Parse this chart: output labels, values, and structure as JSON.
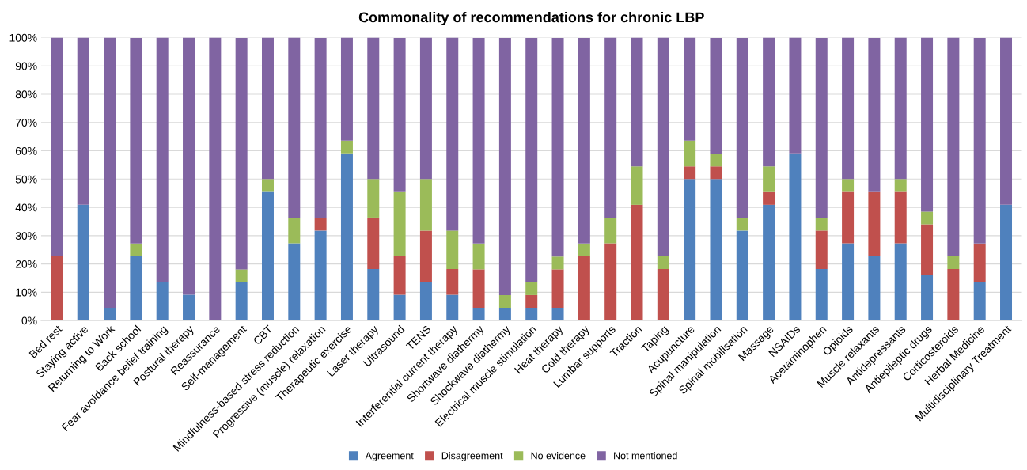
{
  "chart_data": {
    "type": "bar",
    "stacked": true,
    "title": "Commonality of recommendations for chronic LBP",
    "categories": [
      "Bed rest",
      "Staying active",
      "Returning to Work",
      "Back school",
      "Fear avoidance belief training",
      "Postural therapy",
      "Reassurance",
      "Self-management",
      "CBT",
      "Mindfulness-based stress reduction",
      "Progressive (muscle) relaxation",
      "Therapeutic exercise",
      "Laser therapy",
      "Ultrasound",
      "TENS",
      "Interferential current therapy",
      "Shortwave diathermy",
      "Shockwave diathermy",
      "Electrical muscle stimulation",
      "Heat therapy",
      "Cold therapy",
      "Lumbar supports",
      "Traction",
      "Taping",
      "Acupuncture",
      "Spinal manipulation",
      "Spinal mobilisation",
      "Massage",
      "NSAIDs",
      "Acetaminophen",
      "Opioids",
      "Muscle relaxants",
      "Antidepressants",
      "Antiepileptic drugs",
      "Corticosteroids",
      "Herbal Medicine",
      "Multidisciplinary Treatment"
    ],
    "series": [
      {
        "name": "Agreement",
        "color": "#4f81bd",
        "values": [
          0,
          40.9,
          4.5,
          22.7,
          13.6,
          9.1,
          0,
          13.6,
          45.5,
          27.3,
          31.8,
          59.1,
          18.2,
          9.1,
          13.6,
          9.1,
          4.5,
          4.5,
          4.5,
          4.5,
          0,
          0,
          0,
          0,
          50,
          50,
          31.8,
          40.9,
          59.1,
          18.2,
          27.3,
          22.7,
          27.3,
          16,
          0,
          13.6,
          40.9
        ]
      },
      {
        "name": "Disagreement",
        "color": "#c0504d",
        "values": [
          22.7,
          0,
          0,
          0,
          0,
          0,
          0,
          0,
          0,
          0,
          4.5,
          0,
          18.2,
          13.6,
          18.2,
          9.1,
          13.6,
          0,
          4.5,
          13.6,
          22.7,
          27.3,
          40.9,
          18.2,
          4.5,
          4.5,
          0,
          4.5,
          0,
          13.6,
          18.2,
          22.7,
          18.2,
          18,
          18.2,
          13.6,
          0
        ]
      },
      {
        "name": "No evidence",
        "color": "#9bbb59",
        "values": [
          0,
          0,
          0,
          4.5,
          0,
          0,
          0,
          4.5,
          4.5,
          9.1,
          0,
          4.5,
          13.6,
          22.7,
          18.2,
          13.6,
          9.1,
          4.5,
          4.5,
          4.5,
          4.5,
          9.1,
          13.6,
          4.5,
          9.1,
          4.5,
          4.5,
          9.1,
          0,
          4.5,
          4.5,
          0,
          4.5,
          4.5,
          4.5,
          0,
          0
        ]
      },
      {
        "name": "Not mentioned",
        "color": "#8064a2",
        "values": [
          77.3,
          59.1,
          95.5,
          72.7,
          86.4,
          90.9,
          100,
          81.8,
          50,
          63.6,
          63.6,
          36.4,
          50,
          54.5,
          50,
          68.2,
          72.7,
          90.9,
          86.4,
          77.3,
          72.7,
          63.6,
          45.5,
          77.3,
          36.4,
          40.9,
          63.6,
          45.5,
          40.9,
          63.6,
          50,
          54.5,
          50,
          61.5,
          77.3,
          72.7,
          59.1
        ]
      }
    ],
    "ylim": [
      0,
      100
    ],
    "yticks": [
      {
        "value": 0,
        "label": "0%"
      },
      {
        "value": 10,
        "label": "10%"
      },
      {
        "value": 20,
        "label": "20%"
      },
      {
        "value": 30,
        "label": "30%"
      },
      {
        "value": 40,
        "label": "40%"
      },
      {
        "value": 50,
        "label": "50%"
      },
      {
        "value": 60,
        "label": "60%"
      },
      {
        "value": 70,
        "label": "70%"
      },
      {
        "value": 80,
        "label": "80%"
      },
      {
        "value": 90,
        "label": "90%"
      },
      {
        "value": 100,
        "label": "100%"
      }
    ],
    "grid": "y",
    "legend": "bottom"
  }
}
